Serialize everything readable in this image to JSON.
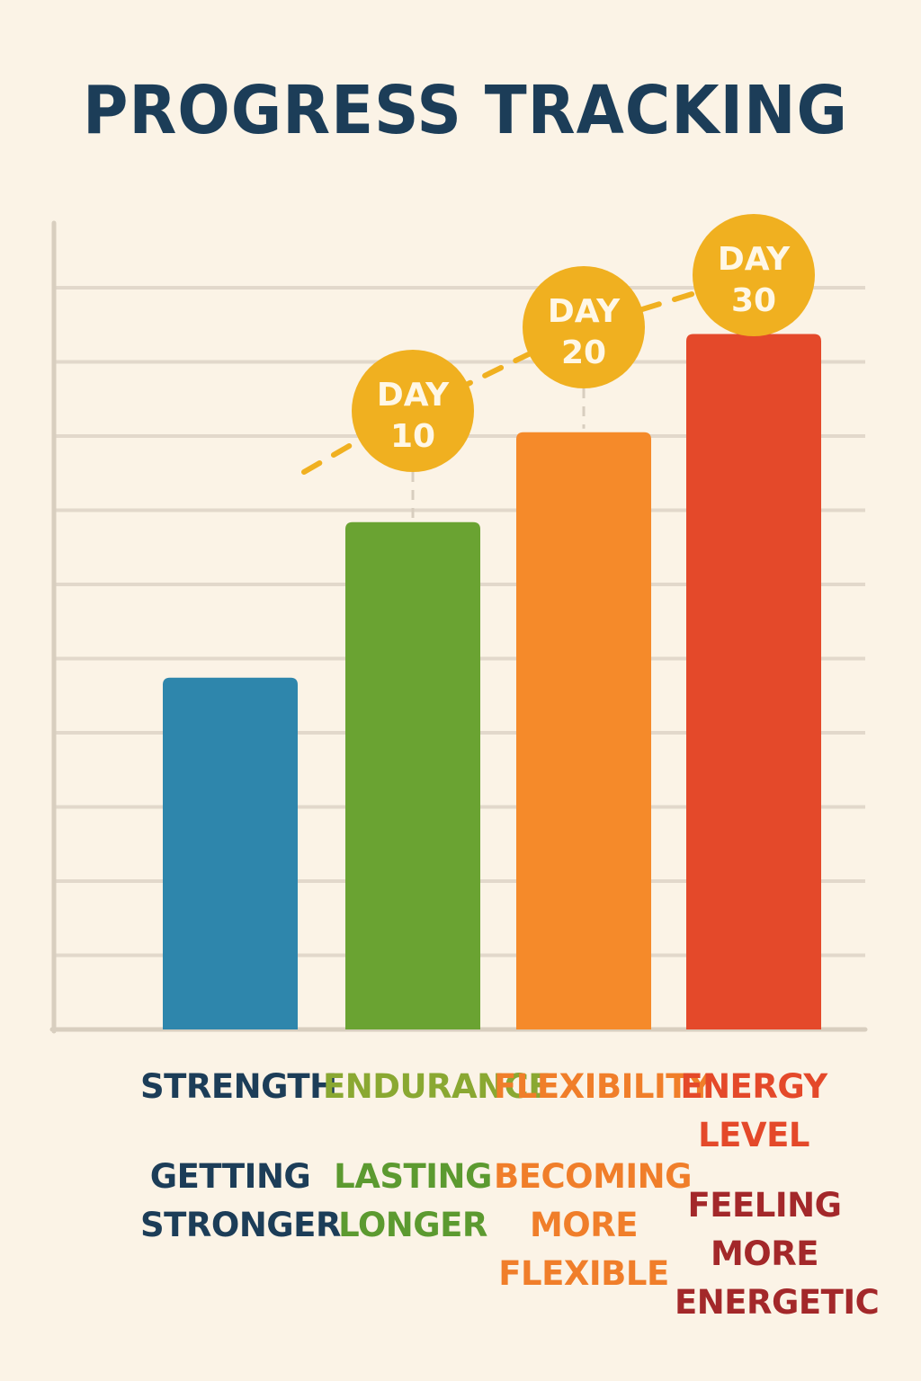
{
  "colors": {
    "background": "#fbf3e6",
    "grid": "#e2d8cb",
    "axis": "#d8cebf",
    "title": "#1c3d58",
    "milestone": "#f0b020",
    "milestone_text": "#fff7e6"
  },
  "chart_data": {
    "type": "bar",
    "title": "PROGRESS TRACKING",
    "xlabel": "",
    "ylabel": "",
    "ylim": [
      0,
      10
    ],
    "grid": true,
    "categories": [
      "STRENGTH",
      "ENDURANCE",
      "FLEXIBILITY",
      "ENERGY\nLEVEL"
    ],
    "subtitles": [
      "GETTING\nSTRONGER",
      "LASTING\nLONGER",
      "BECOMING\nMORE\nFLEXIBLE",
      "FEELING\nMORE\nENERGETIC"
    ],
    "values": [
      4.3,
      6.2,
      7.3,
      8.5
    ],
    "bar_colors": [
      "#2e86ac",
      "#6aa332",
      "#f58a2a",
      "#e4492a"
    ],
    "label_colors": [
      "#1c3d58",
      "#8aa832",
      "#f07e2a",
      "#e4492a"
    ],
    "subtitle_colors": [
      "#1c3d58",
      "#5c9a30",
      "#f07e2a",
      "#a3282a"
    ],
    "milestones": [
      {
        "label": "DAY\n10",
        "category_index": 1
      },
      {
        "label": "DAY\n20",
        "category_index": 2
      },
      {
        "label": "DAY\n30",
        "category_index": 3
      }
    ]
  }
}
